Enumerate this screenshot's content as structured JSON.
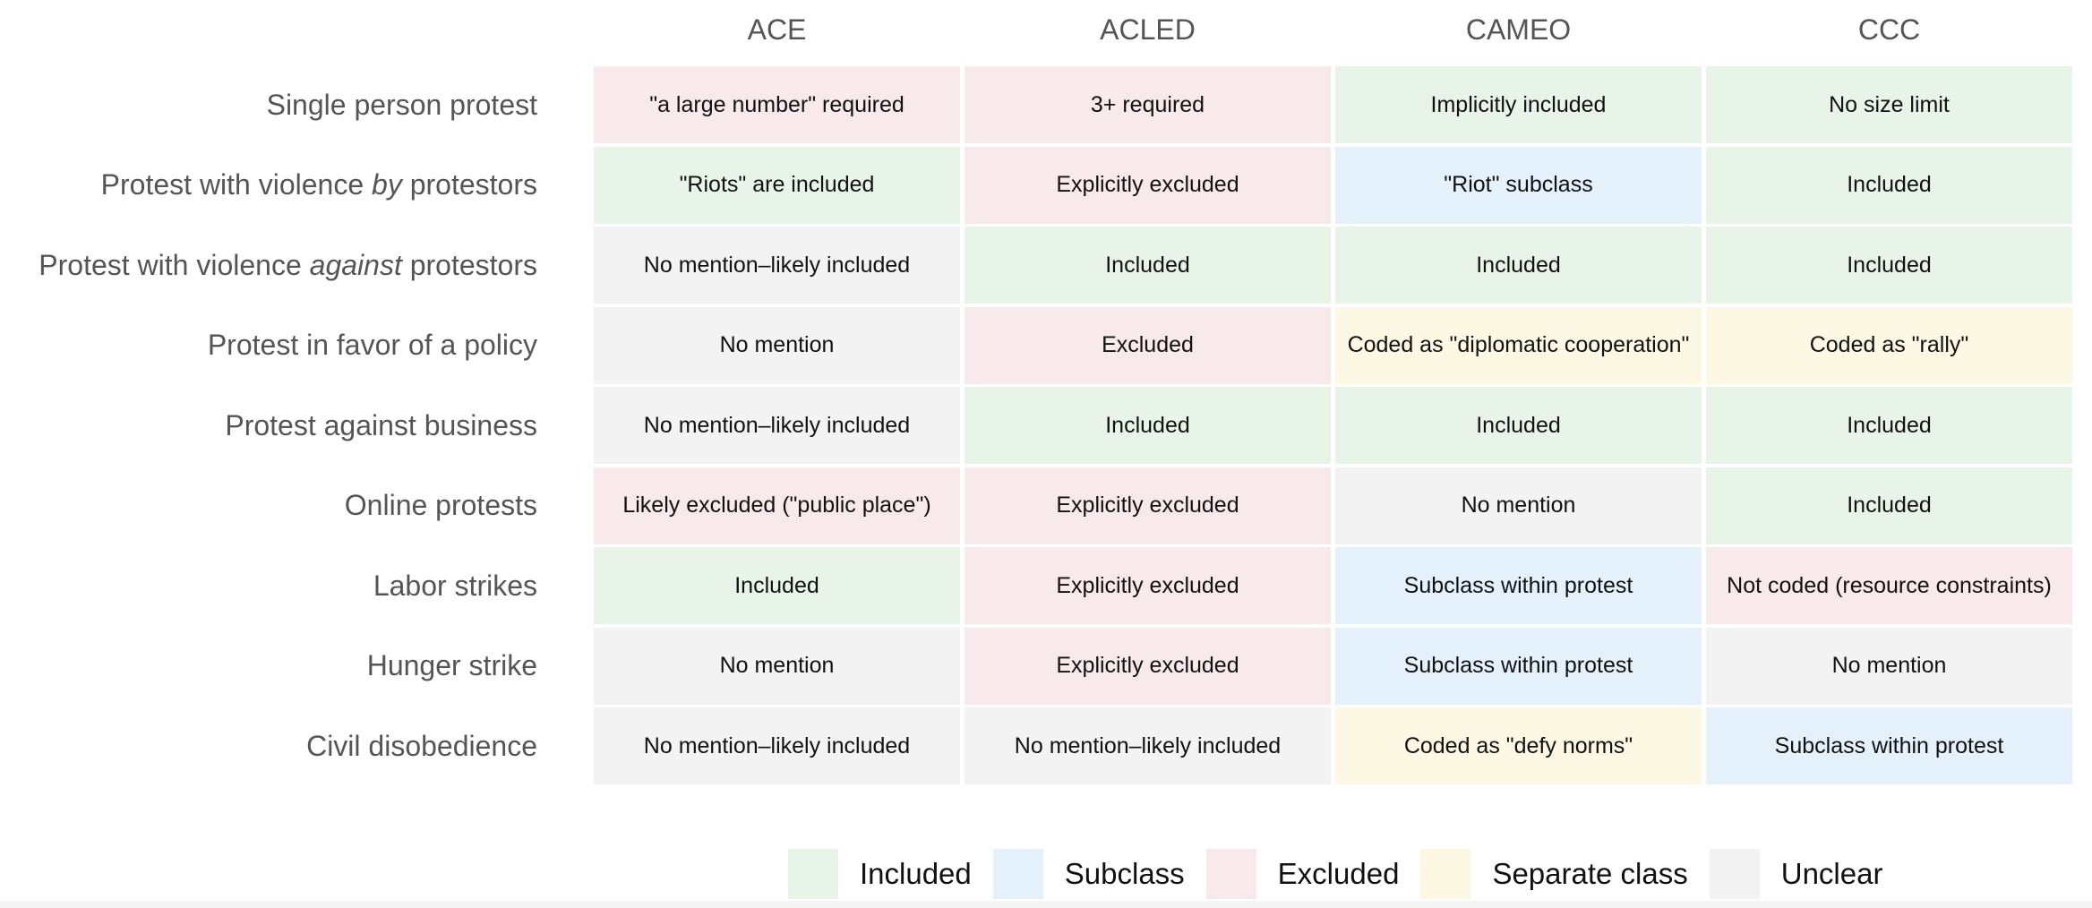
{
  "chart_data": {
    "type": "table",
    "columns": [
      "ACE",
      "ACLED",
      "CAMEO",
      "CCC"
    ],
    "rows": [
      {
        "label_parts": [
          "Single person protest"
        ],
        "cells": [
          {
            "text": "\"a large number\" required",
            "category": "excluded"
          },
          {
            "text": "3+ required",
            "category": "excluded"
          },
          {
            "text": "Implicitly included",
            "category": "included"
          },
          {
            "text": "No size limit",
            "category": "included"
          }
        ]
      },
      {
        "label_parts": [
          "Protest with violence ",
          "by",
          " protestors"
        ],
        "cells": [
          {
            "text": "\"Riots\" are included",
            "category": "included"
          },
          {
            "text": "Explicitly excluded",
            "category": "excluded"
          },
          {
            "text": "\"Riot\" subclass",
            "category": "subclass"
          },
          {
            "text": "Included",
            "category": "included"
          }
        ]
      },
      {
        "label_parts": [
          "Protest with violence ",
          "against",
          " protestors"
        ],
        "cells": [
          {
            "text": "No mention–likely included",
            "category": "unclear"
          },
          {
            "text": "Included",
            "category": "included"
          },
          {
            "text": "Included",
            "category": "included"
          },
          {
            "text": "Included",
            "category": "included"
          }
        ]
      },
      {
        "label_parts": [
          "Protest in favor of a policy"
        ],
        "cells": [
          {
            "text": "No mention",
            "category": "unclear"
          },
          {
            "text": "Excluded",
            "category": "excluded"
          },
          {
            "text": "Coded as \"diplomatic cooperation\"",
            "category": "separate"
          },
          {
            "text": "Coded as \"rally\"",
            "category": "separate"
          }
        ]
      },
      {
        "label_parts": [
          "Protest against business"
        ],
        "cells": [
          {
            "text": "No mention–likely included",
            "category": "unclear"
          },
          {
            "text": "Included",
            "category": "included"
          },
          {
            "text": "Included",
            "category": "included"
          },
          {
            "text": "Included",
            "category": "included"
          }
        ]
      },
      {
        "label_parts": [
          "Online protests"
        ],
        "cells": [
          {
            "text": "Likely excluded (\"public place\")",
            "category": "excluded"
          },
          {
            "text": "Explicitly excluded",
            "category": "excluded"
          },
          {
            "text": "No mention",
            "category": "unclear"
          },
          {
            "text": "Included",
            "category": "included"
          }
        ]
      },
      {
        "label_parts": [
          "Labor strikes"
        ],
        "cells": [
          {
            "text": "Included",
            "category": "included"
          },
          {
            "text": "Explicitly excluded",
            "category": "excluded"
          },
          {
            "text": "Subclass within protest",
            "category": "subclass"
          },
          {
            "text": "Not coded (resource constraints)",
            "category": "excluded"
          }
        ]
      },
      {
        "label_parts": [
          "Hunger strike"
        ],
        "cells": [
          {
            "text": "No mention",
            "category": "unclear"
          },
          {
            "text": "Explicitly excluded",
            "category": "excluded"
          },
          {
            "text": "Subclass within protest",
            "category": "subclass"
          },
          {
            "text": "No mention",
            "category": "unclear"
          }
        ]
      },
      {
        "label_parts": [
          "Civil disobedience"
        ],
        "cells": [
          {
            "text": "No mention–likely included",
            "category": "unclear"
          },
          {
            "text": "No mention–likely included",
            "category": "unclear"
          },
          {
            "text": "Coded as \"defy norms\"",
            "category": "separate"
          },
          {
            "text": "Subclass within protest",
            "category": "subclass"
          }
        ]
      }
    ],
    "legend": {
      "placement": "bottom",
      "items": [
        {
          "key": "included",
          "label": "Included",
          "color": "#e9f4e9"
        },
        {
          "key": "subclass",
          "label": "Subclass",
          "color": "#e5f1fa"
        },
        {
          "key": "excluded",
          "label": "Excluded",
          "color": "#f8e9ea"
        },
        {
          "key": "separate",
          "label": "Separate class",
          "color": "#fdf8e4"
        },
        {
          "key": "unclear",
          "label": "Unclear",
          "color": "#f3f3f3"
        }
      ]
    }
  }
}
